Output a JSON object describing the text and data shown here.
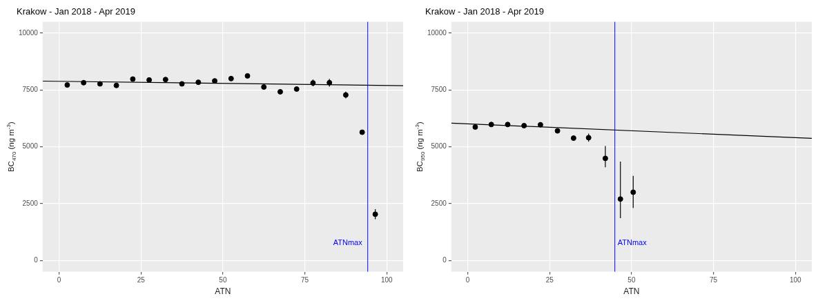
{
  "chart_data": [
    {
      "type": "scatter",
      "title": "Krakow - Jan 2018 - Apr 2019",
      "xlabel": "ATN",
      "ylabel": "BC$_{470}$ (ng m$^{-3}$)",
      "series": [
        {
          "color": "#000000",
          "x": [
            2.5,
            7.5,
            12.5,
            17.5,
            22.5,
            27.5,
            32.5,
            37.5,
            42.5,
            47.5,
            52.5,
            57.5,
            62.5,
            67.5,
            72.5,
            77.5,
            82.5,
            87.5,
            92.5,
            96.5
          ],
          "values": [
            7720,
            7820,
            7770,
            7700,
            7980,
            7940,
            7960,
            7770,
            7840,
            7900,
            8000,
            8120,
            7630,
            7420,
            7540,
            7810,
            7820,
            7280,
            5640,
            2030
          ],
          "errors": [
            null,
            null,
            null,
            null,
            null,
            null,
            null,
            null,
            null,
            null,
            null,
            null,
            null,
            null,
            null,
            150,
            170,
            150,
            90,
            220
          ]
        },
        {
          "type": "line",
          "color": "#000000",
          "marker": "none",
          "x": [
            -5,
            105
          ],
          "values": [
            7890,
            7690
          ]
        }
      ],
      "ref_lines": [
        {
          "axis": "x",
          "value": 94.2,
          "label": "ATNmax",
          "color": "#0000ff"
        }
      ],
      "xlim": [
        -5,
        105
      ],
      "xticks": [
        0,
        25,
        50,
        75,
        100
      ],
      "ylim": [
        -500,
        10500
      ],
      "yticks": [
        0,
        2500,
        5000,
        7500,
        10000
      ],
      "grid": true,
      "marker": "circle",
      "legend": false
    },
    {
      "type": "scatter",
      "title": "Krakow - Jan 2018 - Apr 2019",
      "xlabel": "ATN",
      "ylabel": "BC$_{950}$ (ng m$^{-3}$)",
      "series": [
        {
          "color": "#000000",
          "x": [
            2.3,
            7.2,
            12.2,
            17.2,
            22.2,
            27.4,
            32.3,
            36.9,
            42.0,
            46.6,
            50.5
          ],
          "values": [
            5870,
            5980,
            5980,
            5930,
            5970,
            5700,
            5380,
            5400,
            4490,
            2700,
            3000
          ],
          "errors": [
            null,
            null,
            null,
            null,
            null,
            null,
            null,
            180,
            [
              4100,
              5030
            ],
            [
              1860,
              4350
            ],
            [
              2310,
              3720
            ]
          ]
        },
        {
          "type": "line",
          "color": "#000000",
          "marker": "none",
          "x": [
            -5,
            105
          ],
          "values": [
            6040,
            5370
          ]
        }
      ],
      "ref_lines": [
        {
          "axis": "x",
          "value": 44.9,
          "label": "ATNmax",
          "color": "#0000ff"
        }
      ],
      "xlim": [
        -5,
        105
      ],
      "xticks": [
        0,
        25,
        50,
        75,
        100
      ],
      "ylim": [
        -500,
        10500
      ],
      "yticks": [
        0,
        2500,
        5000,
        7500,
        10000
      ],
      "grid": true,
      "marker": "circle",
      "legend": false
    }
  ]
}
